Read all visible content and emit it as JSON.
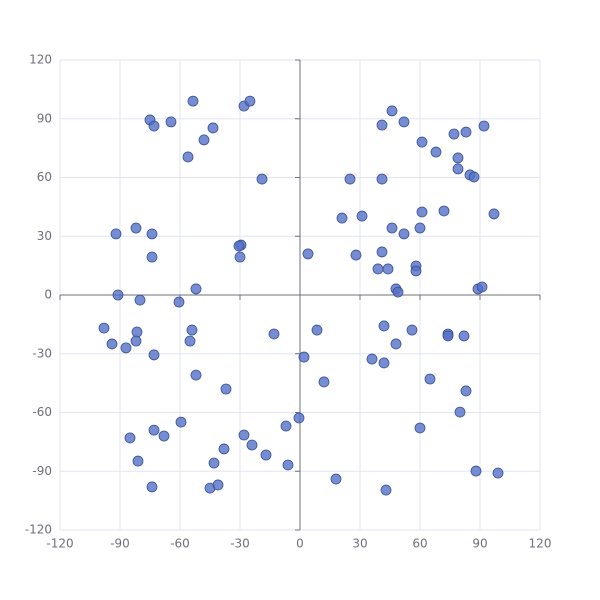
{
  "chart_data": {
    "type": "scatter",
    "x": [
      -53.5,
      -75,
      -73,
      -64.5,
      -43.5,
      -48,
      -56,
      -28,
      -25,
      -19,
      -92,
      -82,
      -74,
      -74,
      -29.5,
      -30.5,
      -30,
      -52,
      -91,
      -80,
      -60.5,
      -98,
      -94,
      -87,
      -81.5,
      -82,
      -73,
      -54,
      -55,
      -13,
      -52,
      -37,
      -59.5,
      -73,
      -68,
      -85,
      -28,
      -24,
      -38,
      -43,
      -17,
      -7,
      -6,
      -81,
      -74,
      -45,
      -41,
      -0.5,
      4,
      8.5,
      2,
      12,
      18,
      43,
      21,
      25,
      31,
      28,
      41,
      41,
      46,
      52,
      61,
      68,
      77,
      83,
      92,
      79,
      79,
      85,
      87,
      97,
      72,
      61,
      46,
      52,
      60,
      41,
      39,
      44,
      58,
      58,
      48,
      49,
      89,
      91,
      42,
      56,
      74,
      74,
      82,
      36,
      42,
      48,
      65,
      83,
      80,
      60,
      88,
      99
    ],
    "values": [
      99,
      89.4,
      86.3,
      88.4,
      85.3,
      79.2,
      70.5,
      96.5,
      99,
      59.2,
      31.2,
      34.2,
      31.2,
      19.4,
      25.5,
      25,
      19.4,
      3.1,
      0,
      -2.6,
      -3.6,
      -16.9,
      -25,
      -27,
      -18.9,
      -23.5,
      -30.6,
      -17.9,
      -23.5,
      -19.9,
      -40.9,
      -48,
      -64.9,
      -69,
      -72,
      -73,
      -71.5,
      -76.6,
      -78.6,
      -85.8,
      -81.7,
      -66.9,
      -86.8,
      -84.8,
      -98,
      -98.6,
      -97,
      -62.8,
      21,
      -17.9,
      -31.7,
      -44.4,
      -94,
      -99.6,
      39.3,
      59.2,
      40.3,
      20.4,
      59.2,
      86.8,
      94,
      88.4,
      78.1,
      73,
      82.2,
      83.2,
      86.3,
      70,
      64.4,
      61.3,
      60.3,
      41.4,
      42.9,
      42.4,
      34.2,
      31.2,
      34.2,
      22,
      13.3,
      13.3,
      14.8,
      12.3,
      3.1,
      1.5,
      3.1,
      4.1,
      -15.8,
      -17.9,
      -19.9,
      -20.9,
      -20.9,
      -32.7,
      -34.7,
      -25,
      -42.9,
      -49,
      -59.8,
      -67.9,
      -89.9,
      -90.9
    ],
    "color": "#5470c6",
    "xlim": [
      -120,
      120
    ],
    "xticks": [
      -120,
      -90,
      -60,
      -30,
      0,
      30,
      60,
      90,
      120
    ],
    "ylim": [
      -120,
      120
    ],
    "yticks": [
      -120,
      -90,
      -60,
      -30,
      0,
      30,
      60,
      90,
      120
    ],
    "grid": true
  }
}
